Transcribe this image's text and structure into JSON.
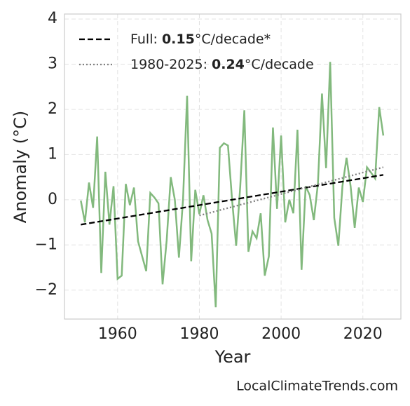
{
  "chart_data": {
    "type": "line",
    "xlabel": "Year",
    "ylabel": "Anomaly (°C)",
    "annotation": "LocalClimateTrends.com",
    "xlim": [
      1947,
      2029.3
    ],
    "ylim": [
      -2.64,
      4.11
    ],
    "xticks": [
      1960,
      1980,
      2000,
      2020
    ],
    "yticks": [
      {
        "value": -2,
        "label": "−2"
      },
      {
        "value": -1,
        "label": "−1"
      },
      0,
      1,
      2,
      3,
      4
    ],
    "grid": true,
    "legend": "upper left",
    "series": [
      {
        "color": "#82b97d",
        "style": "solid",
        "x": [
          1951,
          1952,
          1953,
          1954,
          1955,
          1956,
          1957,
          1958,
          1959,
          1960,
          1961,
          1962,
          1963,
          1964,
          1965,
          1966,
          1967,
          1968,
          1969,
          1970,
          1971,
          1972,
          1973,
          1974,
          1975,
          1976,
          1977,
          1978,
          1979,
          1980,
          1981,
          1982,
          1983,
          1984,
          1985,
          1986,
          1987,
          1988,
          1989,
          1990,
          1991,
          1992,
          1993,
          1994,
          1995,
          1996,
          1997,
          1998,
          1999,
          2000,
          2001,
          2002,
          2003,
          2004,
          2005,
          2006,
          2007,
          2008,
          2009,
          2010,
          2011,
          2012,
          2013,
          2014,
          2015,
          2016,
          2017,
          2018,
          2019,
          2020,
          2021,
          2022,
          2023,
          2024,
          2025
        ],
        "values": [
          -0.02,
          -0.5,
          0.38,
          -0.18,
          1.4,
          -1.62,
          0.62,
          -0.55,
          0.3,
          -1.75,
          -1.68,
          0.35,
          -0.12,
          0.27,
          -0.92,
          -1.25,
          -1.58,
          0.15,
          0.05,
          -0.08,
          -1.87,
          -0.9,
          0.5,
          0.0,
          -1.28,
          0.0,
          2.3,
          -1.36,
          0.22,
          -0.32,
          0.1,
          -0.45,
          -0.75,
          -2.38,
          1.15,
          1.25,
          1.2,
          0.0,
          -1.02,
          0.3,
          1.98,
          -1.15,
          -0.7,
          -0.85,
          -0.3,
          -1.68,
          -1.25,
          1.6,
          -0.2,
          1.42,
          -0.5,
          0.0,
          -0.3,
          1.55,
          -1.55,
          0.3,
          0.1,
          -0.45,
          0.35,
          2.35,
          0.7,
          3.05,
          -0.4,
          -1.02,
          0.3,
          0.93,
          0.3,
          -0.62,
          0.27,
          -0.05,
          0.72,
          0.6,
          0.47,
          2.05,
          1.42
        ]
      },
      {
        "name": [
          "Full: ",
          "0.15",
          "°C/decade*"
        ],
        "color": "#000000",
        "style": "dashed",
        "x": [
          1951,
          2025
        ],
        "values": [
          -0.55,
          0.55
        ]
      },
      {
        "name": [
          "1980-2025: ",
          "0.24",
          "°C/decade"
        ],
        "color": "#808080",
        "style": "dotted",
        "x": [
          1980,
          2025
        ],
        "values": [
          -0.35,
          0.72
        ]
      }
    ]
  }
}
